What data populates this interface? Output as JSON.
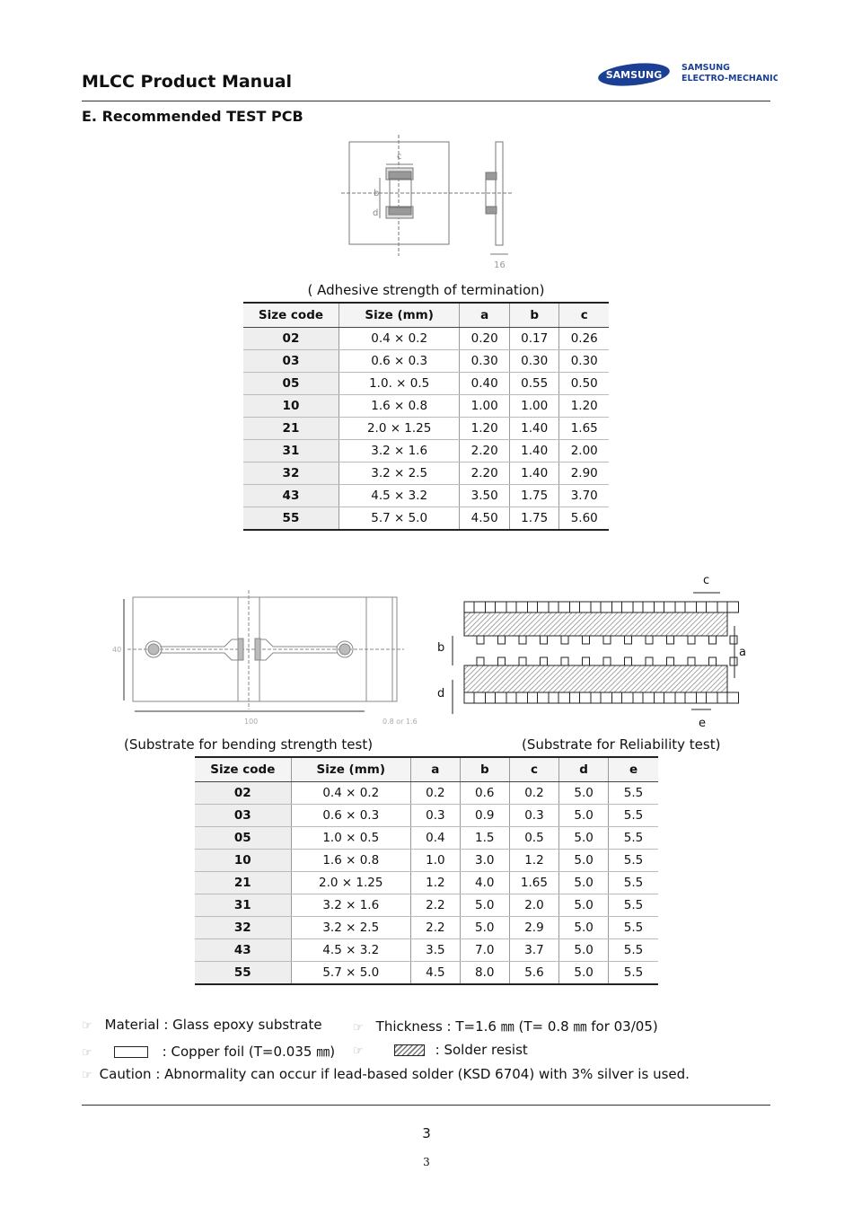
{
  "header": {
    "title": "MLCC Product Manual",
    "logo_text": "SAMSUNG",
    "company_line1": "SAMSUNG",
    "company_line2": "ELECTRO-MECHANICS",
    "brand_color": "#1b3f94"
  },
  "section_title": "E. Recommended TEST PCB",
  "diagram1": {
    "labels": {
      "c": "c",
      "b": "b",
      "d": "d",
      "thickness": "16"
    }
  },
  "table1": {
    "caption": "( Adhesive strength of termination)",
    "headers": [
      "Size code",
      "Size (mm)",
      "a",
      "b",
      "c"
    ],
    "rows": [
      [
        "02",
        "0.4 × 0.2",
        "0.20",
        "0.17",
        "0.26"
      ],
      [
        "03",
        "0.6 × 0.3",
        "0.30",
        "0.30",
        "0.30"
      ],
      [
        "05",
        "1.0. × 0.5",
        "0.40",
        "0.55",
        "0.50"
      ],
      [
        "10",
        "1.6 × 0.8",
        "1.00",
        "1.00",
        "1.20"
      ],
      [
        "21",
        "2.0 × 1.25",
        "1.20",
        "1.40",
        "1.65"
      ],
      [
        "31",
        "3.2 × 1.6",
        "2.20",
        "1.40",
        "2.00"
      ],
      [
        "32",
        "3.2 × 2.5",
        "2.20",
        "1.40",
        "2.90"
      ],
      [
        "43",
        "4.5 × 3.2",
        "3.50",
        "1.75",
        "3.70"
      ],
      [
        "55",
        "5.7 × 5.0",
        "4.50",
        "1.75",
        "5.60"
      ]
    ]
  },
  "diagram2": {
    "caption": "(Substrate for bending strength test)",
    "labels": {
      "height": "40",
      "length": "100",
      "thickness": "0.8 or 1.6"
    }
  },
  "diagram3": {
    "caption": "(Substrate for Reliability test)",
    "labels": {
      "a": "a",
      "b": "b",
      "c": "c",
      "d": "d",
      "e": "e"
    }
  },
  "table2": {
    "headers": [
      "Size code",
      "Size (mm)",
      "a",
      "b",
      "c",
      "d",
      "e"
    ],
    "rows": [
      [
        "02",
        "0.4 × 0.2",
        "0.2",
        "0.6",
        "0.2",
        "5.0",
        "5.5"
      ],
      [
        "03",
        "0.6 × 0.3",
        "0.3",
        "0.9",
        "0.3",
        "5.0",
        "5.5"
      ],
      [
        "05",
        "1.0 × 0.5",
        "0.4",
        "1.5",
        "0.5",
        "5.0",
        "5.5"
      ],
      [
        "10",
        "1.6 × 0.8",
        "1.0",
        "3.0",
        "1.2",
        "5.0",
        "5.5"
      ],
      [
        "21",
        "2.0 × 1.25",
        "1.2",
        "4.0",
        "1.65",
        "5.0",
        "5.5"
      ],
      [
        "31",
        "3.2 × 1.6",
        "2.2",
        "5.0",
        "2.0",
        "5.0",
        "5.5"
      ],
      [
        "32",
        "3.2 × 2.5",
        "2.2",
        "5.0",
        "2.9",
        "5.0",
        "5.5"
      ],
      [
        "43",
        "4.5 × 3.2",
        "3.5",
        "7.0",
        "3.7",
        "5.0",
        "5.5"
      ],
      [
        "55",
        "5.7 × 5.0",
        "4.5",
        "8.0",
        "5.6",
        "5.0",
        "5.5"
      ]
    ]
  },
  "notes": {
    "material": "Material : Glass epoxy substrate",
    "thickness": "Thickness : T=1.6 ㎜ (T= 0.8 ㎜ for 03/05)",
    "copper": ": Copper foil (T=0.035 ㎜)",
    "solder": ": Solder resist",
    "caution": "Caution : Abnormality can occur if lead-based solder (KSD 6704) with 3% silver is used.",
    "bullet_icon": "pointing-hand-icon"
  },
  "footer": {
    "page_number": "3",
    "page_number_small": "3"
  }
}
